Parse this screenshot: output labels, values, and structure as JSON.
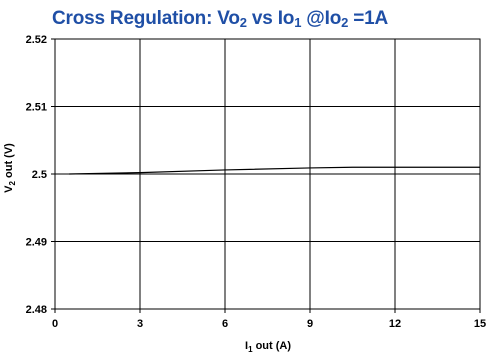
{
  "chart_data": {
    "type": "line",
    "title": {
      "prefix": "Cross Regulation: Vo",
      "sub1": "2",
      "mid1": " vs Io",
      "sub2": "1",
      "mid2": "  @Io",
      "sub3": "2",
      "suffix": " =1A"
    },
    "xlabel": {
      "main": "I",
      "sub": "1",
      "rest": " out (A)"
    },
    "ylabel": {
      "main": "V",
      "sub": "2",
      "rest": " out (V)"
    },
    "xlim": [
      0,
      15
    ],
    "ylim": [
      2.48,
      2.52
    ],
    "x_ticks": [
      "0",
      "3",
      "6",
      "9",
      "12",
      "15"
    ],
    "y_ticks": [
      "2.52",
      "2.51",
      "2.5",
      "2.49",
      "2.48"
    ],
    "grid": true,
    "series": [
      {
        "color": "#000000",
        "x": [
          0.5,
          3,
          6,
          9,
          10.5,
          12,
          15
        ],
        "y": [
          2.5,
          2.5002,
          2.5006,
          2.5009,
          2.501,
          2.501,
          2.501
        ]
      }
    ]
  }
}
